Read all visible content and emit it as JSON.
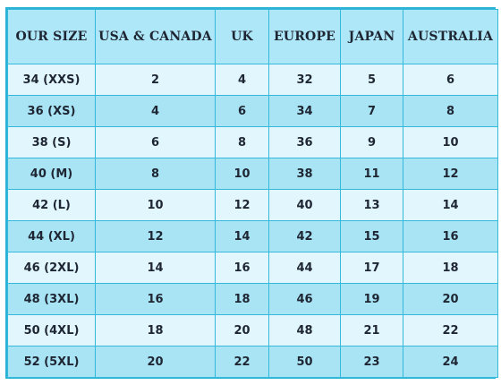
{
  "table": {
    "headers": [
      "OUR SIZE",
      "USA & CANADA",
      "UK",
      "EUROPE",
      "JAPAN",
      "AUSTRALIA"
    ],
    "rows": [
      [
        "34 (XXS)",
        "2",
        "4",
        "32",
        "5",
        "6"
      ],
      [
        "36 (XS)",
        "4",
        "6",
        "34",
        "7",
        "8"
      ],
      [
        "38 (S)",
        "6",
        "8",
        "36",
        "9",
        "10"
      ],
      [
        "40 (M)",
        "8",
        "10",
        "38",
        "11",
        "12"
      ],
      [
        "42 (L)",
        "10",
        "12",
        "40",
        "13",
        "14"
      ],
      [
        "44 (XL)",
        "12",
        "14",
        "42",
        "15",
        "16"
      ],
      [
        "46 (2XL)",
        "14",
        "16",
        "44",
        "17",
        "18"
      ],
      [
        "48 (3XL)",
        "16",
        "18",
        "46",
        "19",
        "20"
      ],
      [
        "50 (4XL)",
        "18",
        "20",
        "48",
        "21",
        "22"
      ],
      [
        "52 (5XL)",
        "20",
        "22",
        "50",
        "23",
        "24"
      ]
    ]
  },
  "colors": {
    "border": "#33b9dc",
    "header_bg": "#aee7f8",
    "row_light_bg": "#e1f7fd",
    "row_dark_bg": "#a9e4f5"
  }
}
